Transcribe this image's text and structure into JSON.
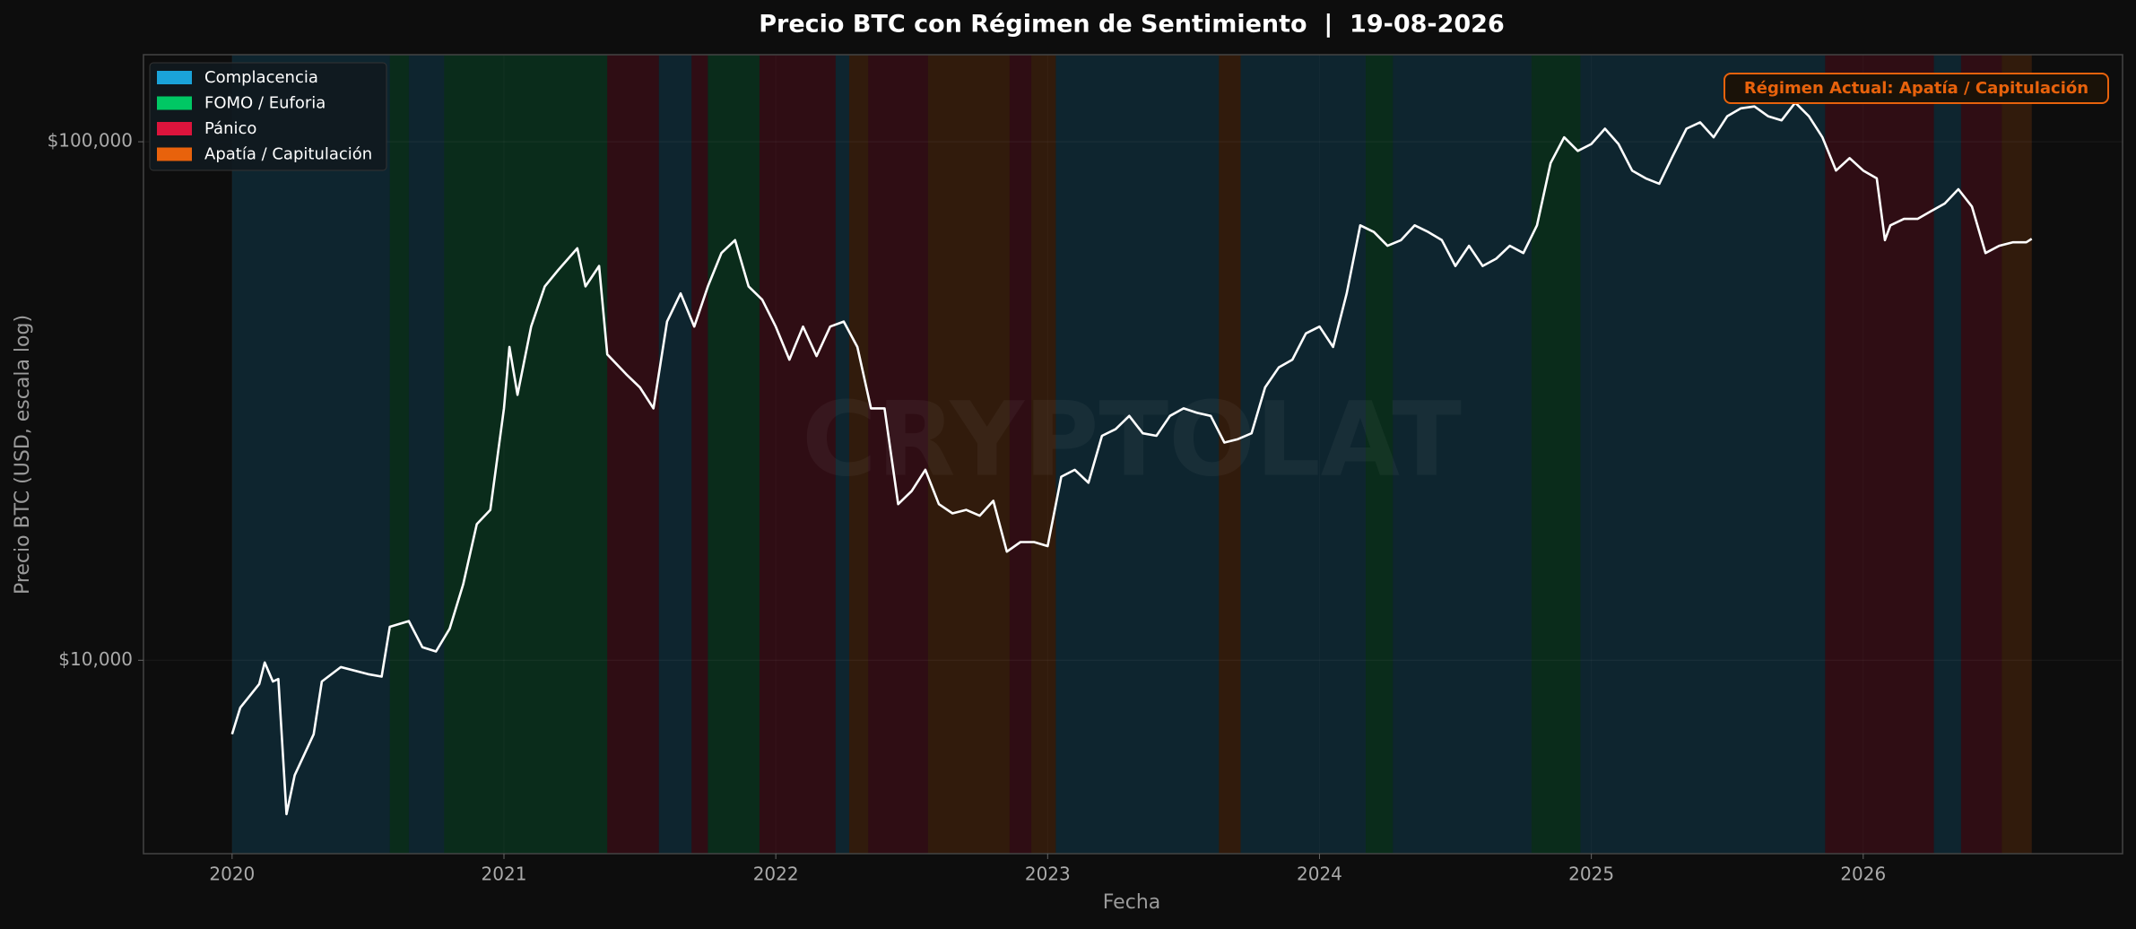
{
  "chart_data": {
    "type": "line",
    "title": "Precio BTC con Régimen de Sentimiento  |  19-08-2026",
    "x_label": "Fecha",
    "y_label": "Precio BTC (USD, escala log)",
    "watermark": "CRYPTOLAT",
    "annotation": "Régimen Actual: Apatía / Capitulación",
    "log_scale": true,
    "grid": true,
    "legend_position": "upper-left",
    "color": "#ffffff",
    "xlim": [
      2019.674,
      2026.954
    ],
    "xticks": [
      2020,
      2021,
      2022,
      2023,
      2024,
      2025,
      2026
    ],
    "ylim": [
      4236,
      147200
    ],
    "yticks": [
      {
        "value": 10000,
        "label": "$10,000"
      },
      {
        "value": 100000,
        "label": "$100,000"
      }
    ],
    "regimes": [
      {
        "name": "Complacencia",
        "color": "#1aa3d9"
      },
      {
        "name": "FOMO / Euforia",
        "color": "#00c864"
      },
      {
        "name": "Pánico",
        "color": "#dc143c"
      },
      {
        "name": "Apatía / Capitulación",
        "color": "#e8620c"
      }
    ],
    "bands": [
      {
        "start": 2020.0,
        "end": 2020.58,
        "regime": "Complacencia"
      },
      {
        "start": 2020.58,
        "end": 2020.65,
        "regime": "FOMO / Euforia"
      },
      {
        "start": 2020.65,
        "end": 2020.78,
        "regime": "Complacencia"
      },
      {
        "start": 2020.78,
        "end": 2021.38,
        "regime": "FOMO / Euforia"
      },
      {
        "start": 2021.38,
        "end": 2021.57,
        "regime": "Pánico"
      },
      {
        "start": 2021.57,
        "end": 2021.69,
        "regime": "Complacencia"
      },
      {
        "start": 2021.69,
        "end": 2021.75,
        "regime": "Pánico"
      },
      {
        "start": 2021.75,
        "end": 2021.94,
        "regime": "FOMO / Euforia"
      },
      {
        "start": 2021.94,
        "end": 2022.22,
        "regime": "Pánico"
      },
      {
        "start": 2022.22,
        "end": 2022.27,
        "regime": "Complacencia"
      },
      {
        "start": 2022.27,
        "end": 2022.34,
        "regime": "Apatía / Capitulación"
      },
      {
        "start": 2022.34,
        "end": 2022.56,
        "regime": "Pánico"
      },
      {
        "start": 2022.56,
        "end": 2022.86,
        "regime": "Apatía / Capitulación"
      },
      {
        "start": 2022.86,
        "end": 2022.94,
        "regime": "Pánico"
      },
      {
        "start": 2022.94,
        "end": 2023.03,
        "regime": "Apatía / Capitulación"
      },
      {
        "start": 2023.03,
        "end": 2023.63,
        "regime": "Complacencia"
      },
      {
        "start": 2023.63,
        "end": 2023.71,
        "regime": "Apatía / Capitulación"
      },
      {
        "start": 2023.71,
        "end": 2024.17,
        "regime": "Complacencia"
      },
      {
        "start": 2024.17,
        "end": 2024.27,
        "regime": "FOMO / Euforia"
      },
      {
        "start": 2024.27,
        "end": 2024.78,
        "regime": "Complacencia"
      },
      {
        "start": 2024.78,
        "end": 2024.96,
        "regime": "FOMO / Euforia"
      },
      {
        "start": 2024.96,
        "end": 2025.86,
        "regime": "Complacencia"
      },
      {
        "start": 2025.86,
        "end": 2026.26,
        "regime": "Pánico"
      },
      {
        "start": 2026.26,
        "end": 2026.36,
        "regime": "Complacencia"
      },
      {
        "start": 2026.36,
        "end": 2026.51,
        "regime": "Pánico"
      },
      {
        "start": 2026.51,
        "end": 2026.62,
        "regime": "Apatía / Capitulación"
      }
    ],
    "x": [
      2020.0,
      2020.03,
      2020.1,
      2020.12,
      2020.15,
      2020.17,
      2020.2,
      2020.23,
      2020.3,
      2020.33,
      2020.4,
      2020.5,
      2020.55,
      2020.58,
      2020.65,
      2020.7,
      2020.75,
      2020.8,
      2020.85,
      2020.9,
      2020.95,
      2021.0,
      2021.02,
      2021.05,
      2021.1,
      2021.15,
      2021.2,
      2021.27,
      2021.3,
      2021.35,
      2021.38,
      2021.45,
      2021.5,
      2021.55,
      2021.6,
      2021.65,
      2021.7,
      2021.75,
      2021.8,
      2021.85,
      2021.9,
      2021.95,
      2022.0,
      2022.05,
      2022.1,
      2022.15,
      2022.2,
      2022.25,
      2022.3,
      2022.35,
      2022.4,
      2022.45,
      2022.5,
      2022.55,
      2022.6,
      2022.65,
      2022.7,
      2022.75,
      2022.8,
      2022.85,
      2022.9,
      2022.95,
      2023.0,
      2023.05,
      2023.1,
      2023.15,
      2023.2,
      2023.25,
      2023.3,
      2023.35,
      2023.4,
      2023.45,
      2023.5,
      2023.55,
      2023.6,
      2023.65,
      2023.7,
      2023.75,
      2023.8,
      2023.85,
      2023.9,
      2023.95,
      2024.0,
      2024.05,
      2024.1,
      2024.15,
      2024.2,
      2024.25,
      2024.3,
      2024.35,
      2024.4,
      2024.45,
      2024.5,
      2024.55,
      2024.6,
      2024.65,
      2024.7,
      2024.75,
      2024.8,
      2024.85,
      2024.9,
      2024.95,
      2025.0,
      2025.05,
      2025.1,
      2025.15,
      2025.2,
      2025.25,
      2025.3,
      2025.35,
      2025.4,
      2025.45,
      2025.5,
      2025.55,
      2025.6,
      2025.65,
      2025.7,
      2025.75,
      2025.8,
      2025.85,
      2025.9,
      2025.95,
      2026.0,
      2026.05,
      2026.08,
      2026.1,
      2026.15,
      2026.2,
      2026.25,
      2026.3,
      2026.35,
      2026.4,
      2026.45,
      2026.5,
      2026.55,
      2026.6,
      2026.62
    ],
    "values": [
      7200,
      8100,
      9000,
      9900,
      9100,
      9200,
      5050,
      6000,
      7200,
      9100,
      9700,
      9400,
      9300,
      11600,
      11900,
      10600,
      10400,
      11500,
      14000,
      18300,
      19500,
      30600,
      40200,
      32500,
      44000,
      52600,
      56600,
      62300,
      52600,
      57600,
      38900,
      35600,
      33600,
      30600,
      45000,
      51000,
      44000,
      52600,
      61000,
      64600,
      52600,
      49600,
      44000,
      38000,
      44000,
      38600,
      44000,
      45000,
      40200,
      30600,
      30600,
      20000,
      21200,
      23300,
      20000,
      19200,
      19500,
      19000,
      20300,
      16200,
      16900,
      16900,
      16600,
      22600,
      23300,
      22000,
      27100,
      27900,
      29600,
      27400,
      27100,
      29600,
      30600,
      30000,
      29600,
      26300,
      26700,
      27400,
      33600,
      36700,
      38000,
      42700,
      44000,
      40200,
      51000,
      69000,
      67000,
      63000,
      64600,
      69000,
      67000,
      64600,
      57600,
      63000,
      57600,
      59500,
      63000,
      61000,
      69000,
      91000,
      102000,
      96000,
      99000,
      106000,
      99000,
      88000,
      85000,
      83000,
      94000,
      106000,
      109000,
      102000,
      112000,
      116000,
      117000,
      112000,
      110000,
      119000,
      112000,
      102000,
      88000,
      93000,
      88000,
      85000,
      64600,
      69000,
      71000,
      71000,
      73500,
      76000,
      81000,
      75000,
      61000,
      63000,
      64000,
      64000,
      65000
    ]
  }
}
